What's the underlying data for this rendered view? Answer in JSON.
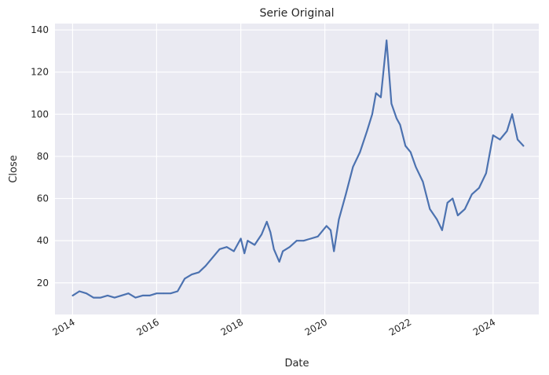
{
  "chart_data": {
    "type": "line",
    "title": "Serie Original",
    "xlabel": "Date",
    "ylabel": "Close",
    "x_ticks": [
      "2014",
      "2016",
      "2018",
      "2020",
      "2022",
      "2024"
    ],
    "y_ticks": [
      "20",
      "40",
      "60",
      "80",
      "100",
      "120",
      "140"
    ],
    "xlim": [
      "2013-08-01",
      "2025-02-01"
    ],
    "ylim": [
      5,
      143
    ],
    "grid": true,
    "legend": "none",
    "colors": {
      "line": "#4c72b0",
      "plot_bg": "#eaeaf2",
      "grid": "#ffffff"
    },
    "series": [
      {
        "x": [
          "2014-01-02",
          "2014-03-01",
          "2014-05-01",
          "2014-07-01",
          "2014-09-01",
          "2014-11-01",
          "2015-01-01",
          "2015-03-01",
          "2015-05-01",
          "2015-07-01",
          "2015-09-01",
          "2015-11-01",
          "2016-01-01",
          "2016-03-01",
          "2016-05-01",
          "2016-07-01",
          "2016-09-01",
          "2016-11-01",
          "2017-01-01",
          "2017-03-01",
          "2017-05-01",
          "2017-07-01",
          "2017-09-01",
          "2017-11-01",
          "2018-01-01",
          "2018-02-01",
          "2018-03-01",
          "2018-05-01",
          "2018-07-01",
          "2018-08-15",
          "2018-09-15",
          "2018-10-15",
          "2018-12-01",
          "2019-01-01",
          "2019-03-01",
          "2019-05-01",
          "2019-07-01",
          "2019-09-01",
          "2019-11-01",
          "2020-01-15",
          "2020-02-20",
          "2020-03-20",
          "2020-05-01",
          "2020-07-01",
          "2020-09-01",
          "2020-11-01",
          "2021-01-01",
          "2021-02-15",
          "2021-03-20",
          "2021-05-01",
          "2021-06-20",
          "2021-08-01",
          "2021-09-15",
          "2021-10-15",
          "2021-12-01",
          "2022-01-15",
          "2022-03-01",
          "2022-05-01",
          "2022-07-01",
          "2022-09-01",
          "2022-10-15",
          "2022-12-01",
          "2023-01-15",
          "2023-03-01",
          "2023-05-01",
          "2023-07-01",
          "2023-09-01",
          "2023-11-01",
          "2024-01-01",
          "2024-03-01",
          "2024-05-01",
          "2024-06-15",
          "2024-08-01",
          "2024-09-20"
        ],
        "values": [
          14,
          16,
          15,
          13,
          13,
          14,
          13,
          14,
          15,
          13,
          14,
          14,
          15,
          15,
          15,
          16,
          22,
          24,
          25,
          28,
          32,
          36,
          37,
          35,
          41,
          34,
          40,
          38,
          43,
          49,
          44,
          36,
          30,
          35,
          37,
          40,
          40,
          41,
          42,
          47,
          45,
          35,
          50,
          62,
          75,
          82,
          92,
          100,
          110,
          108,
          135,
          105,
          98,
          95,
          85,
          82,
          75,
          68,
          55,
          50,
          45,
          58,
          60,
          52,
          55,
          62,
          65,
          72,
          90,
          88,
          92,
          100,
          88,
          85
        ]
      }
    ]
  }
}
